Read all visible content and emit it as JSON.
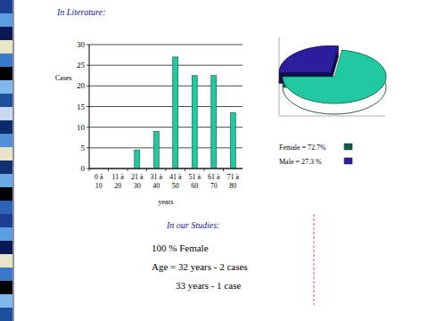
{
  "chart_data": [
    {
      "type": "bar",
      "x_label": "years",
      "y_label": "Cases",
      "categories": [
        "0 à 10",
        "11 à 20",
        "21 à 30",
        "31 à 40",
        "41 à 50",
        "51 à 60",
        "61 à 70",
        "71 à 80"
      ],
      "values": [
        0,
        0,
        4.5,
        9,
        27,
        22.5,
        22.5,
        13.5
      ],
      "color": "#20c9a0",
      "ylim": [
        0,
        30
      ],
      "yticks": [
        0,
        5,
        10,
        15,
        20,
        25,
        30
      ],
      "grid": true
    },
    {
      "type": "pie",
      "categories": [
        "Female = 72.7%",
        "Male = 27.3 %"
      ],
      "values": [
        72.7,
        27.3
      ],
      "colors": [
        "#20c9a0",
        "#2b1fa0"
      ],
      "legend": "bottom"
    }
  ],
  "slide": {
    "heading": "In Literature:",
    "studies_heading": "In our Studies:",
    "notes": [
      "100 % Female",
      "Age = 32 years - 2 cases",
      "33 years - 1 case"
    ]
  }
}
